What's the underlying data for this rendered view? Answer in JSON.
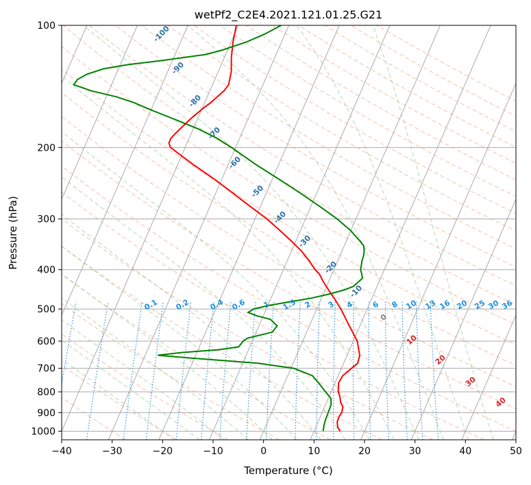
{
  "chart_data": {
    "type": "line",
    "subtype": "skew-t log-p",
    "title": "wetPf2_C2E4.2021.121.01.25.G21",
    "xlabel": "Temperature (°C)",
    "ylabel": "Pressure (hPa)",
    "xlim": [
      -40,
      50
    ],
    "ylim": [
      1050,
      100
    ],
    "y_scale": "log",
    "skew_deg_per_decade": 35,
    "xticks": [
      -40,
      -30,
      -20,
      -10,
      0,
      10,
      20,
      30,
      40,
      50
    ],
    "yticks": [
      100,
      200,
      300,
      400,
      500,
      600,
      700,
      800,
      900,
      1000
    ],
    "grid": true,
    "series": [
      {
        "color": "#ff0000",
        "pressure": [
          1000,
          980,
          950,
          920,
          900,
          870,
          850,
          820,
          800,
          760,
          730,
          700,
          680,
          650,
          620,
          600,
          570,
          540,
          500,
          470,
          450,
          430,
          410,
          400,
          380,
          360,
          340,
          320,
          300,
          280,
          260,
          240,
          220,
          210,
          200,
          195,
          190,
          185,
          180,
          175,
          170,
          165,
          160,
          155,
          150,
          145,
          140,
          130,
          120,
          110,
          100
        ],
        "temperature": [
          15.2,
          14.4,
          13.8,
          13.7,
          13.9,
          13.6,
          12.8,
          12.1,
          11.4,
          10.7,
          10.9,
          12.0,
          12.8,
          12.5,
          11.5,
          10.8,
          9.1,
          7.3,
          4.8,
          2.5,
          0.8,
          -0.9,
          -2.5,
          -3.7,
          -5.7,
          -8.0,
          -10.9,
          -14.1,
          -17.6,
          -21.9,
          -26.4,
          -31.3,
          -37.0,
          -39.9,
          -42.9,
          -43.6,
          -43.6,
          -43.2,
          -42.6,
          -42.0,
          -41.4,
          -40.6,
          -39.8,
          -38.8,
          -38.0,
          -37.2,
          -36.8,
          -37.4,
          -38.6,
          -39.6,
          -40.4
        ]
      },
      {
        "color": "#008000",
        "pressure": [
          1000,
          970,
          940,
          900,
          860,
          830,
          800,
          760,
          730,
          700,
          680,
          660,
          650,
          640,
          630,
          620,
          600,
          590,
          570,
          550,
          530,
          520,
          510,
          500,
          490,
          480,
          470,
          460,
          450,
          440,
          420,
          410,
          400,
          380,
          370,
          360,
          350,
          340,
          320,
          300,
          280,
          260,
          240,
          220,
          200,
          190,
          180,
          170,
          160,
          155,
          150,
          145,
          140,
          136,
          132,
          128,
          125,
          122,
          118,
          115,
          110,
          105,
          100
        ],
        "dewpoint": [
          11.8,
          11.5,
          11.3,
          11.2,
          11.1,
          10.5,
          8.9,
          6.7,
          4.9,
          0.6,
          -7.0,
          -21.0,
          -27.5,
          -23.0,
          -16.0,
          -12.2,
          -11.8,
          -11.2,
          -6.8,
          -6.4,
          -8.3,
          -11.2,
          -13.3,
          -12.5,
          -9.8,
          -6.0,
          -2.0,
          1.0,
          3.5,
          5.3,
          6.4,
          5.9,
          5.3,
          4.8,
          4.7,
          4.4,
          3.9,
          2.7,
          -0.1,
          -3.7,
          -8.1,
          -13.0,
          -18.5,
          -24.6,
          -30.8,
          -34.4,
          -39.0,
          -44.8,
          -51.0,
          -54.0,
          -58.0,
          -63.5,
          -67.5,
          -67.2,
          -65.8,
          -63.0,
          -58.5,
          -52.0,
          -44.0,
          -41.0,
          -37.0,
          -34.0,
          -31.5
        ]
      }
    ],
    "dry_adiabat_labels": [
      -100,
      -90,
      -80,
      -70,
      -60,
      -50,
      -40,
      -30,
      -20,
      -10
    ],
    "moist_adiabat_labels": [
      0,
      10,
      20,
      30,
      40
    ],
    "mixing_ratio_labels": [
      "0.1",
      "0.2",
      "0.4",
      "0.6",
      "1",
      "1.5",
      "2",
      "3",
      "4",
      "6",
      "8",
      "10",
      "13",
      "16",
      "20",
      "25",
      "30",
      "36"
    ],
    "mixing_ratio_values": [
      0.1,
      0.2,
      0.4,
      0.6,
      1,
      1.5,
      2,
      3,
      4,
      6,
      8,
      10,
      13,
      16,
      20,
      25,
      30,
      36
    ]
  }
}
